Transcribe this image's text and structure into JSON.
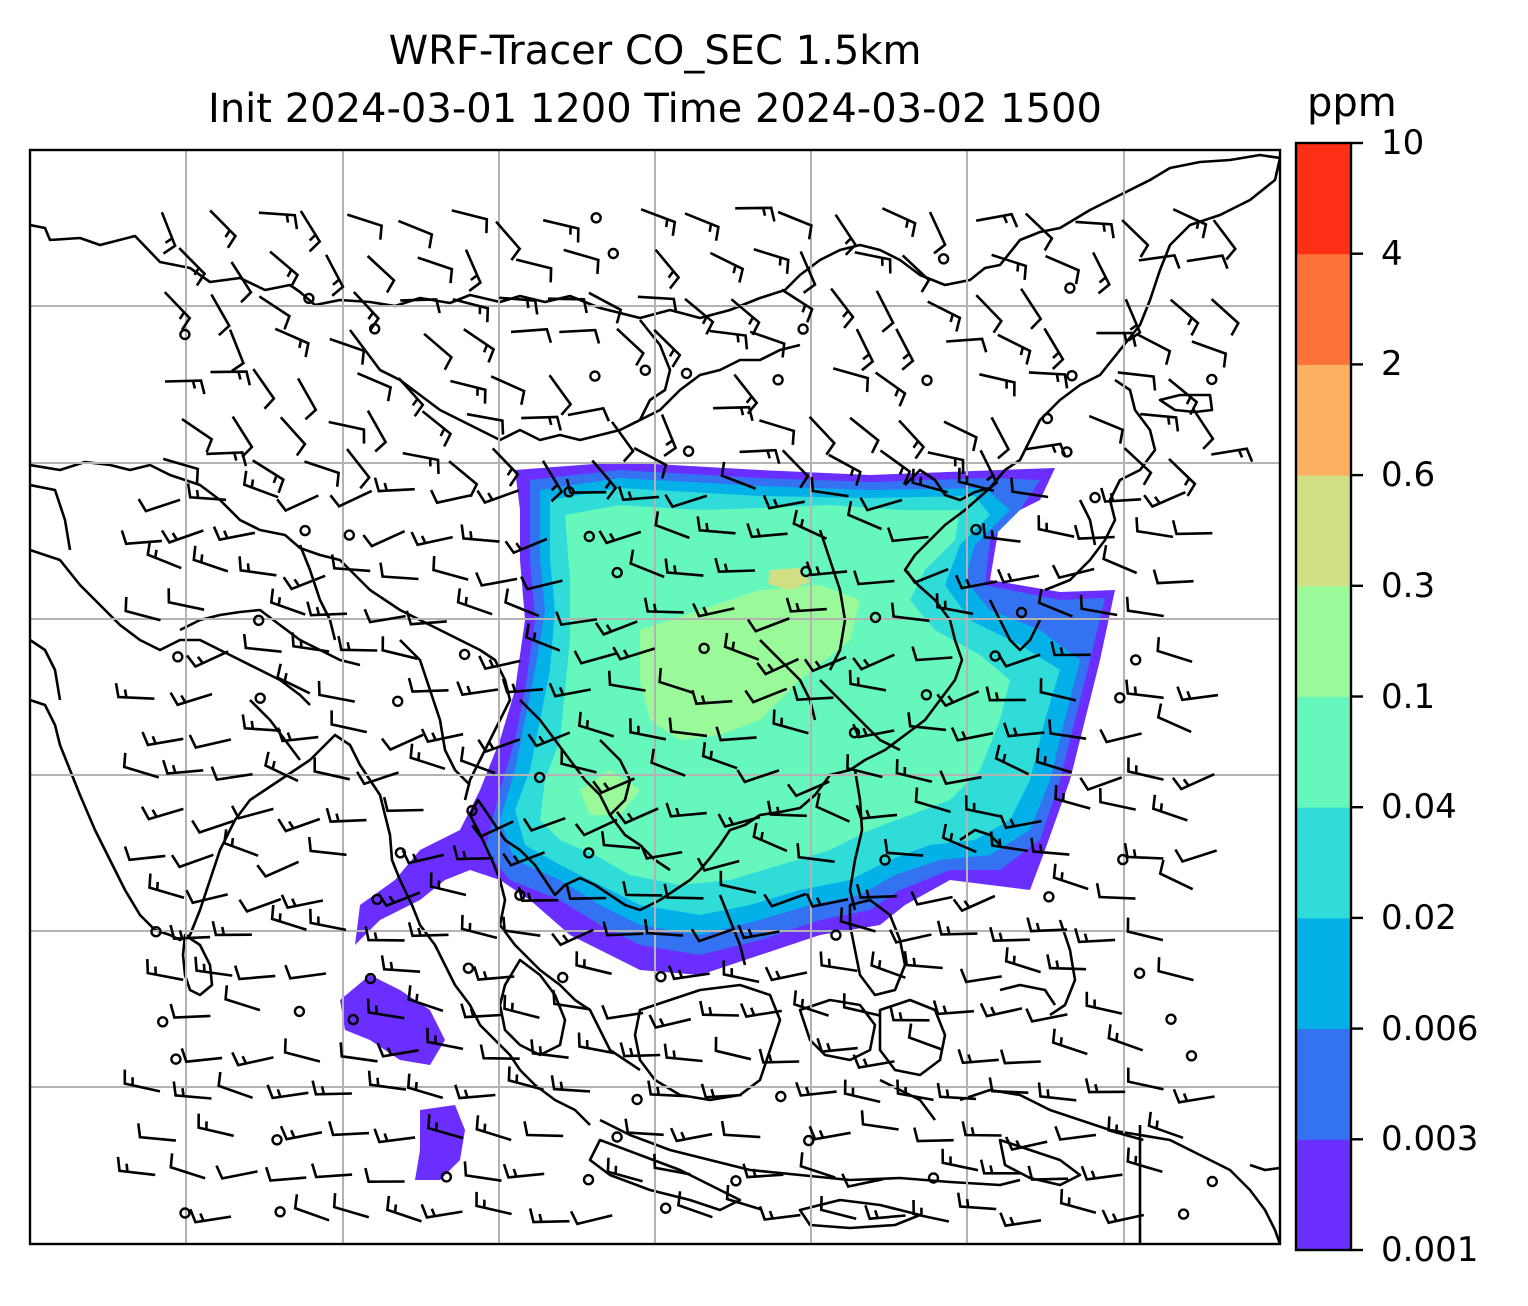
{
  "title": {
    "line1": "WRF-Tracer CO_SEC 1.5km",
    "line2": "Init 2024-03-01 1200 Time 2024-03-02 1500"
  },
  "colorbar": {
    "unit": "ppm",
    "levels": [
      "0.001",
      "0.003",
      "0.006",
      "0.02",
      "0.04",
      "0.1",
      "0.3",
      "0.6",
      "2",
      "4",
      "10"
    ],
    "colors": [
      "#6a2efe",
      "#3373f2",
      "#04b0e8",
      "#2fdcd7",
      "#66f7bd",
      "#9afa9a",
      "#d1df84",
      "#fdb062",
      "#fe733b",
      "#ff2f16"
    ]
  },
  "map": {
    "ocean_color": "#ffffff",
    "coast_color": "#000000",
    "grid_color": "#b3b3b3",
    "barb_color": "#000000"
  }
}
